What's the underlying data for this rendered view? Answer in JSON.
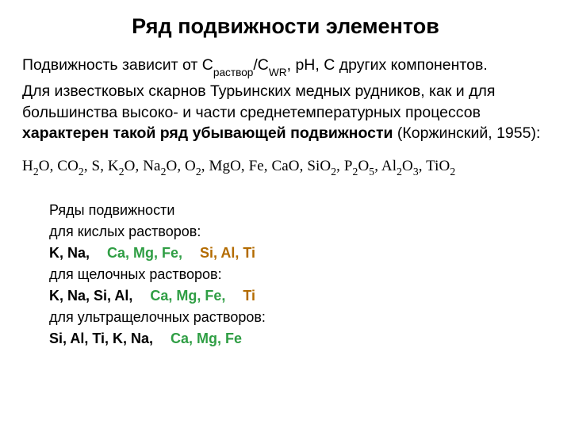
{
  "title": "Ряд подвижности элементов",
  "intro_prefix": "Подвижность зависит от С",
  "intro_sub1": "раствор",
  "intro_mid": "/С",
  "intro_sub2": "WR",
  "intro_suffix": ", pH, C других компонентов.",
  "para_pre": "Для известковых скарнов Турьинских медных рудников, как и для большинства высоко- и части среднетемпературных процессов ",
  "para_bold": "характерен такой ряд убывающей подвижности",
  "para_post": " (Коржинский, 1955):",
  "formula": {
    "items": [
      {
        "t": "H",
        "s": "2"
      },
      {
        "t": "O, "
      },
      {
        "t": "CO",
        "s": "2"
      },
      {
        "t": ", S, K",
        "s": "2"
      },
      {
        "t": "O, Na",
        "s": "2"
      },
      {
        "t": "O, O",
        "s": "2"
      },
      {
        "t": ", MgO, Fe, CaO, SiO",
        "s": "2"
      },
      {
        "t": ", P",
        "s": "2"
      },
      {
        "t": "O",
        "s": "5"
      },
      {
        "t": ", Al",
        "s": "2"
      },
      {
        "t": "O",
        "s": "3"
      },
      {
        "t": ", TiO",
        "s": "2"
      }
    ]
  },
  "mobility": {
    "header": "Ряды подвижности",
    "r1_label": "для кислых растворов:",
    "r1_a": "K, Na,",
    "r1_b": "Ca, Mg, Fe,",
    "r1_c": "Si, Al, Ti",
    "r2_label": "для щелочных растворов:",
    "r2_a": "K, Na, Si, Al,",
    "r2_b": "Ca, Mg, Fe,",
    "r2_c": "Ti",
    "r3_label": "для ультращелочных растворов:",
    "r3_a": "Si, Al, Ti, K, Na,",
    "r3_b": "Ca, Mg, Fe"
  },
  "colors": {
    "c_black": "#000000",
    "c_green": "#2f9e44",
    "c_brown": "#b36b00"
  }
}
